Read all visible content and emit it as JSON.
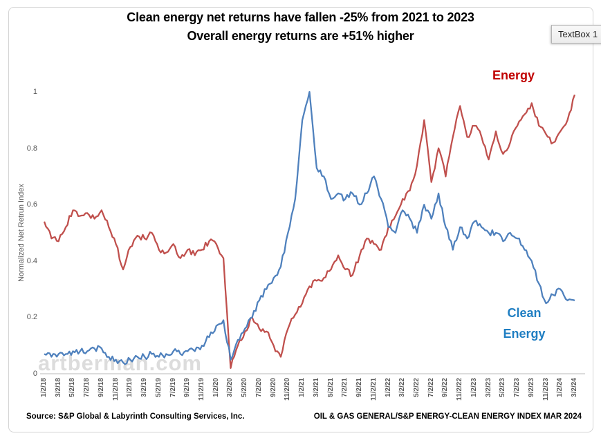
{
  "app": {
    "textbox_label": "TextBox 1"
  },
  "title": {
    "line1": "Clean energy net returns have fallen -25% from 2021 to 2023",
    "line2": "Overall energy returns are +51% higher"
  },
  "watermark": "artberman.com",
  "footer": {
    "source": "Source: S&P Global & Labyrinth Consulting Services, Inc.",
    "index_label": "OIL & GAS GENERAL/S&P ENERGY-CLEAN ENERGY INDEX MAR 2024"
  },
  "chart_data": {
    "type": "line",
    "title": "Clean energy net returns have fallen -25% from 2021 to 2023 — Overall energy returns are +51% higher",
    "xlabel": "",
    "ylabel": "Normalized Net Retrun Index",
    "ylim": [
      0,
      1
    ],
    "grid": false,
    "legend_position": "inline-annotations",
    "yticks": [
      0,
      0.2,
      0.4,
      0.6,
      0.8,
      1
    ],
    "ytick_labels": [
      "0",
      "0.2",
      "0.4",
      "0.6",
      "0.8",
      "1"
    ],
    "x_tick_labels": [
      "1/2/18",
      "3/2/18",
      "5/2/18",
      "7/2/18",
      "9/2/18",
      "11/2/18",
      "1/2/19",
      "3/2/19",
      "5/2/19",
      "7/2/19",
      "9/2/19",
      "11/2/19",
      "1/2/20",
      "3/2/20",
      "5/2/20",
      "7/2/20",
      "9/2/20",
      "11/2/20",
      "1/2/21",
      "3/2/21",
      "5/2/21",
      "7/2/21",
      "9/2/21",
      "11/2/21",
      "1/2/22",
      "3/2/22",
      "5/2/22",
      "7/2/22",
      "9/2/22",
      "11/2/22",
      "1/2/23",
      "3/2/23",
      "5/2/23",
      "7/2/23",
      "9/2/23",
      "11/2/23",
      "1/2/24",
      "3/2/24"
    ],
    "x": [
      "1/18",
      "2/18",
      "3/18",
      "4/18",
      "5/18",
      "6/18",
      "7/18",
      "8/18",
      "9/18",
      "10/18",
      "11/18",
      "12/18",
      "1/19",
      "2/19",
      "3/19",
      "4/19",
      "5/19",
      "6/19",
      "7/19",
      "8/19",
      "9/19",
      "10/19",
      "11/19",
      "12/19",
      "1/20",
      "2/20",
      "3/20",
      "4/20",
      "5/20",
      "6/20",
      "7/20",
      "8/20",
      "9/20",
      "10/20",
      "11/20",
      "12/20",
      "1/21",
      "2/21",
      "3/21",
      "4/21",
      "5/21",
      "6/21",
      "7/21",
      "8/21",
      "9/21",
      "10/21",
      "11/21",
      "12/21",
      "1/22",
      "2/22",
      "3/22",
      "4/22",
      "5/22",
      "6/22",
      "7/22",
      "8/22",
      "9/22",
      "10/22",
      "11/22",
      "12/22",
      "1/23",
      "2/23",
      "3/23",
      "4/23",
      "5/23",
      "6/23",
      "7/23",
      "8/23",
      "9/23",
      "10/23",
      "11/23",
      "12/23",
      "1/24",
      "2/24",
      "3/24"
    ],
    "series": [
      {
        "name": "Energy",
        "color": "#C0504D",
        "label_color": "#C00000",
        "values": [
          0.54,
          0.48,
          0.47,
          0.52,
          0.58,
          0.56,
          0.57,
          0.55,
          0.58,
          0.52,
          0.46,
          0.37,
          0.45,
          0.49,
          0.48,
          0.5,
          0.44,
          0.43,
          0.46,
          0.41,
          0.44,
          0.42,
          0.44,
          0.47,
          0.46,
          0.41,
          0.02,
          0.1,
          0.15,
          0.2,
          0.16,
          0.15,
          0.1,
          0.06,
          0.16,
          0.21,
          0.25,
          0.31,
          0.33,
          0.34,
          0.37,
          0.42,
          0.37,
          0.35,
          0.42,
          0.48,
          0.46,
          0.44,
          0.52,
          0.56,
          0.62,
          0.65,
          0.74,
          0.9,
          0.68,
          0.8,
          0.7,
          0.84,
          0.95,
          0.84,
          0.88,
          0.84,
          0.76,
          0.86,
          0.78,
          0.82,
          0.88,
          0.92,
          0.96,
          0.88,
          0.85,
          0.82,
          0.86,
          0.9,
          0.99
        ]
      },
      {
        "name": "Clean Energy",
        "color": "#4F81BD",
        "label_color": "#1F7EC2",
        "values": [
          0.07,
          0.06,
          0.07,
          0.07,
          0.08,
          0.08,
          0.08,
          0.09,
          0.09,
          0.06,
          0.05,
          0.04,
          0.05,
          0.06,
          0.06,
          0.07,
          0.06,
          0.07,
          0.08,
          0.07,
          0.08,
          0.08,
          0.1,
          0.13,
          0.17,
          0.19,
          0.05,
          0.12,
          0.16,
          0.2,
          0.26,
          0.3,
          0.34,
          0.38,
          0.5,
          0.62,
          0.9,
          1.0,
          0.73,
          0.7,
          0.62,
          0.64,
          0.62,
          0.64,
          0.6,
          0.64,
          0.7,
          0.62,
          0.52,
          0.5,
          0.58,
          0.55,
          0.5,
          0.6,
          0.55,
          0.64,
          0.52,
          0.44,
          0.52,
          0.48,
          0.54,
          0.52,
          0.5,
          0.5,
          0.47,
          0.5,
          0.48,
          0.44,
          0.4,
          0.32,
          0.25,
          0.28,
          0.3,
          0.26,
          0.26
        ]
      }
    ]
  }
}
